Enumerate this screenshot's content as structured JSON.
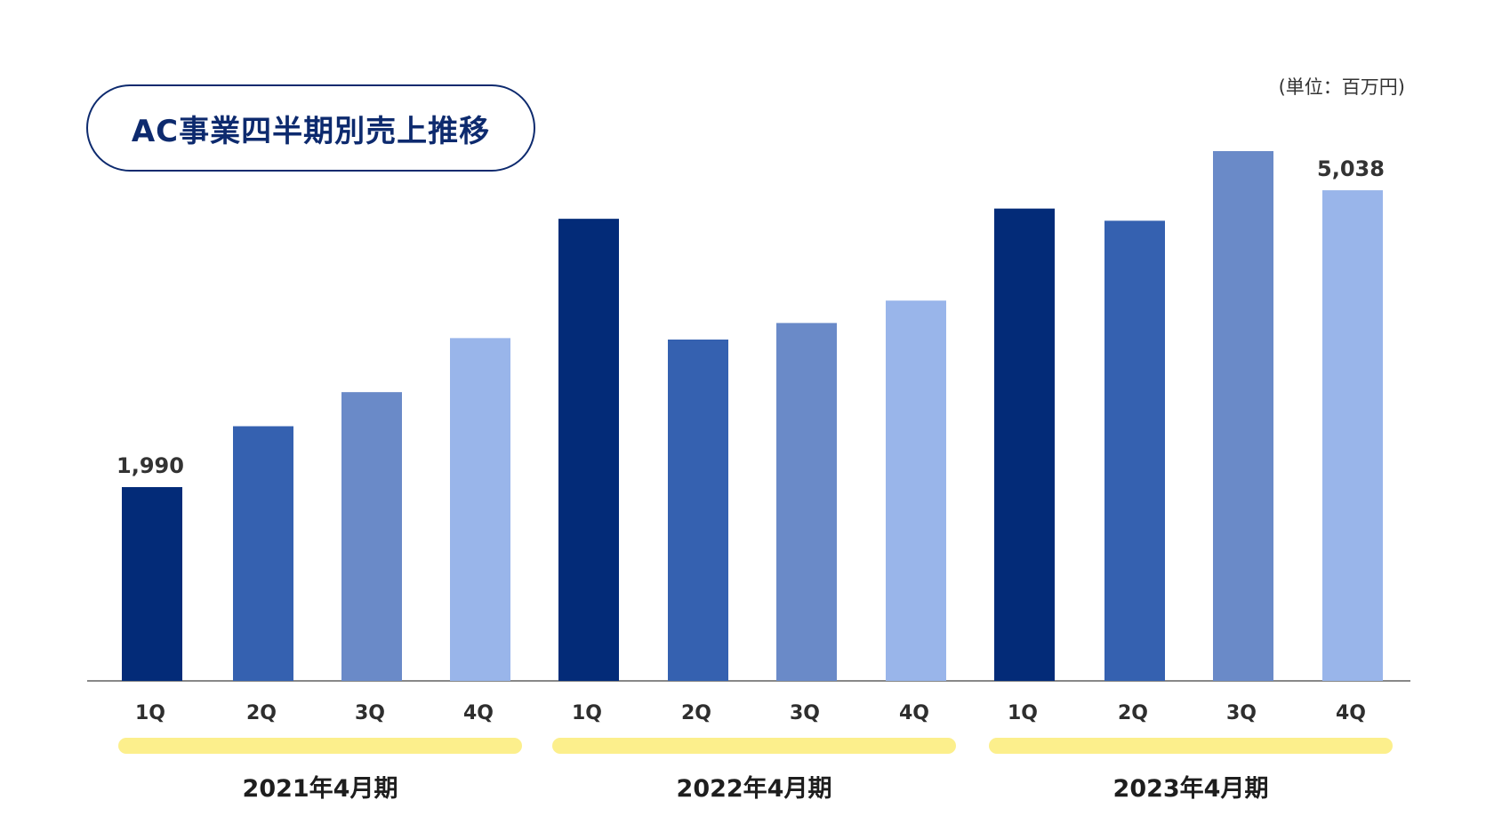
{
  "title": "AC事業四半期別売上推移",
  "unit_label": "(単位：百万円)",
  "colors": {
    "title": "#0d2a6e",
    "q1": "#032b78",
    "q2": "#3561b0",
    "q3": "#6a8ac8",
    "q4": "#99b5ea",
    "group_bar": "#fcef8c",
    "axis": "#888888"
  },
  "chart_data": {
    "type": "bar",
    "ylim": [
      0,
      5400
    ],
    "grid": false,
    "groups": [
      {
        "label": "2021年4月期",
        "categories": [
          "1Q",
          "2Q",
          "3Q",
          "4Q"
        ],
        "values": [
          1990,
          2615,
          2965,
          3520
        ]
      },
      {
        "label": "2022年4月期",
        "categories": [
          "1Q",
          "2Q",
          "3Q",
          "4Q"
        ],
        "values": [
          4745,
          3505,
          3675,
          3905
        ]
      },
      {
        "label": "2023年4月期",
        "categories": [
          "1Q",
          "2Q",
          "3Q",
          "4Q"
        ],
        "values": [
          4850,
          4725,
          5440,
          5038
        ]
      }
    ],
    "data_labels": [
      {
        "group": 0,
        "index": 0,
        "text": "1,990"
      },
      {
        "group": 2,
        "index": 3,
        "text": "5,038"
      }
    ]
  }
}
